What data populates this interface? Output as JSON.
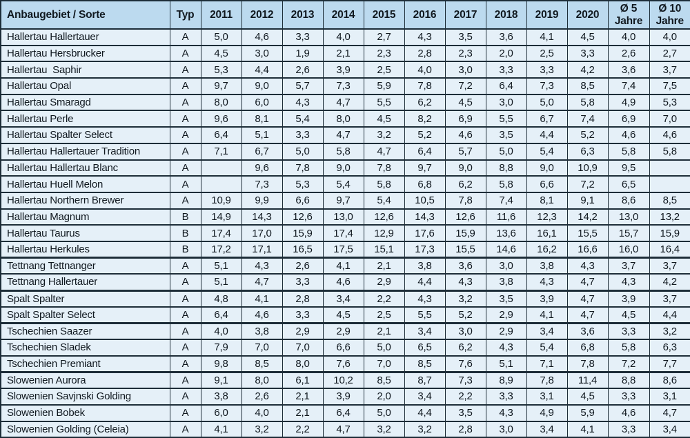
{
  "colors": {
    "header_bg": "#bcdaef",
    "row_bg": "#e5f0f8",
    "border": "#1d2d38",
    "text": "#10181f"
  },
  "table": {
    "columns": [
      {
        "key": "name",
        "label": "Anbaugebiet / Sorte"
      },
      {
        "key": "typ",
        "label": "Typ"
      },
      {
        "key": "y2011",
        "label": "2011"
      },
      {
        "key": "y2012",
        "label": "2012"
      },
      {
        "key": "y2013",
        "label": "2013"
      },
      {
        "key": "y2014",
        "label": "2014"
      },
      {
        "key": "y2015",
        "label": "2015"
      },
      {
        "key": "y2016",
        "label": "2016"
      },
      {
        "key": "y2017",
        "label": "2017"
      },
      {
        "key": "y2018",
        "label": "2018"
      },
      {
        "key": "y2019",
        "label": "2019"
      },
      {
        "key": "y2020",
        "label": "2020"
      },
      {
        "key": "avg5",
        "label": "Ø 5\nJahre"
      },
      {
        "key": "avg10",
        "label": "Ø 10\nJahre"
      }
    ],
    "rows": [
      {
        "name": "Hallertau Hallertauer",
        "typ": "A",
        "values": [
          "5,0",
          "4,6",
          "3,3",
          "4,0",
          "2,7",
          "4,3",
          "3,5",
          "3,6",
          "4,1",
          "4,5",
          "4,0",
          "4,0"
        ],
        "section_end": false
      },
      {
        "name": "Hallertau Hersbrucker",
        "typ": "A",
        "values": [
          "4,5",
          "3,0",
          "1,9",
          "2,1",
          "2,3",
          "2,8",
          "2,3",
          "2,0",
          "2,5",
          "3,3",
          "2,6",
          "2,7"
        ],
        "section_end": false
      },
      {
        "name": "Hallertau  Saphir",
        "typ": "A",
        "values": [
          "5,3",
          "4,4",
          "2,6",
          "3,9",
          "2,5",
          "4,0",
          "3,0",
          "3,3",
          "3,3",
          "4,2",
          "3,6",
          "3,7"
        ],
        "section_end": false
      },
      {
        "name": "Hallertau Opal",
        "typ": "A",
        "values": [
          "9,7",
          "9,0",
          "5,7",
          "7,3",
          "5,9",
          "7,8",
          "7,2",
          "6,4",
          "7,3",
          "8,5",
          "7,4",
          "7,5"
        ],
        "section_end": false
      },
      {
        "name": "Hallertau Smaragd",
        "typ": "A",
        "values": [
          "8,0",
          "6,0",
          "4,3",
          "4,7",
          "5,5",
          "6,2",
          "4,5",
          "3,0",
          "5,0",
          "5,8",
          "4,9",
          "5,3"
        ],
        "section_end": false
      },
      {
        "name": "Hallertau Perle",
        "typ": "A",
        "values": [
          "9,6",
          "8,1",
          "5,4",
          "8,0",
          "4,5",
          "8,2",
          "6,9",
          "5,5",
          "6,7",
          "7,4",
          "6,9",
          "7,0"
        ],
        "section_end": false
      },
      {
        "name": "Hallertau Spalter Select",
        "typ": "A",
        "values": [
          "6,4",
          "5,1",
          "3,3",
          "4,7",
          "3,2",
          "5,2",
          "4,6",
          "3,5",
          "4,4",
          "5,2",
          "4,6",
          "4,6"
        ],
        "section_end": false
      },
      {
        "name": "Hallertau Hallertauer Tradition",
        "typ": "A",
        "values": [
          "7,1",
          "6,7",
          "5,0",
          "5,8",
          "4,7",
          "6,4",
          "5,7",
          "5,0",
          "5,4",
          "6,3",
          "5,8",
          "5,8"
        ],
        "section_end": false
      },
      {
        "name": "Hallertau Hallertau Blanc",
        "typ": "A",
        "values": [
          "",
          "9,6",
          "7,8",
          "9,0",
          "7,8",
          "9,7",
          "9,0",
          "8,8",
          "9,0",
          "10,9",
          "9,5",
          ""
        ],
        "section_end": false
      },
      {
        "name": "Hallertau Huell Melon",
        "typ": "A",
        "values": [
          "",
          "7,3",
          "5,3",
          "5,4",
          "5,8",
          "6,8",
          "6,2",
          "5,8",
          "6,6",
          "7,2",
          "6,5",
          ""
        ],
        "section_end": false
      },
      {
        "name": "Hallertau Northern Brewer",
        "typ": "A",
        "values": [
          "10,9",
          "9,9",
          "6,6",
          "9,7",
          "5,4",
          "10,5",
          "7,8",
          "7,4",
          "8,1",
          "9,1",
          "8,6",
          "8,5"
        ],
        "section_end": false
      },
      {
        "name": "Hallertau Magnum",
        "typ": "B",
        "values": [
          "14,9",
          "14,3",
          "12,6",
          "13,0",
          "12,6",
          "14,3",
          "12,6",
          "11,6",
          "12,3",
          "14,2",
          "13,0",
          "13,2"
        ],
        "section_end": false
      },
      {
        "name": "Hallertau Taurus",
        "typ": "B",
        "values": [
          "17,4",
          "17,0",
          "15,9",
          "17,4",
          "12,9",
          "17,6",
          "15,9",
          "13,6",
          "16,1",
          "15,5",
          "15,7",
          "15,9"
        ],
        "section_end": false
      },
      {
        "name": "Hallertau Herkules",
        "typ": "B",
        "values": [
          "17,2",
          "17,1",
          "16,5",
          "17,5",
          "15,1",
          "17,3",
          "15,5",
          "14,6",
          "16,2",
          "16,6",
          "16,0",
          "16,4"
        ],
        "section_end": true
      },
      {
        "name": "Tettnang Tettnanger",
        "typ": "A",
        "values": [
          "5,1",
          "4,3",
          "2,6",
          "4,1",
          "2,1",
          "3,8",
          "3,6",
          "3,0",
          "3,8",
          "4,3",
          "3,7",
          "3,7"
        ],
        "section_end": false
      },
      {
        "name": "Tettnang Hallertauer",
        "typ": "A",
        "values": [
          "5,1",
          "4,7",
          "3,3",
          "4,6",
          "2,9",
          "4,4",
          "4,3",
          "3,8",
          "4,3",
          "4,7",
          "4,3",
          "4,2"
        ],
        "section_end": true
      },
      {
        "name": "Spalt Spalter",
        "typ": "A",
        "values": [
          "4,8",
          "4,1",
          "2,8",
          "3,4",
          "2,2",
          "4,3",
          "3,2",
          "3,5",
          "3,9",
          "4,7",
          "3,9",
          "3,7"
        ],
        "section_end": false
      },
      {
        "name": "Spalt Spalter Select",
        "typ": "A",
        "values": [
          "6,4",
          "4,6",
          "3,3",
          "4,5",
          "2,5",
          "5,5",
          "5,2",
          "2,9",
          "4,1",
          "4,7",
          "4,5",
          "4,4"
        ],
        "section_end": true
      },
      {
        "name": "Tschechien Saazer",
        "typ": "A",
        "values": [
          "4,0",
          "3,8",
          "2,9",
          "2,9",
          "2,1",
          "3,4",
          "3,0",
          "2,9",
          "3,4",
          "3,6",
          "3,3",
          "3,2"
        ],
        "section_end": false
      },
      {
        "name": "Tschechien Sladek",
        "typ": "A",
        "values": [
          "7,9",
          "7,0",
          "7,0",
          "6,6",
          "5,0",
          "6,5",
          "6,2",
          "4,3",
          "5,4",
          "6,8",
          "5,8",
          "6,3"
        ],
        "section_end": false
      },
      {
        "name": "Tschechien Premiant",
        "typ": "A",
        "values": [
          "9,8",
          "8,5",
          "8,0",
          "7,6",
          "7,0",
          "8,5",
          "7,6",
          "5,1",
          "7,1",
          "7,8",
          "7,2",
          "7,7"
        ],
        "section_end": true
      },
      {
        "name": "Slowenien Aurora",
        "typ": "A",
        "values": [
          "9,1",
          "8,0",
          "6,1",
          "10,2",
          "8,5",
          "8,7",
          "7,3",
          "8,9",
          "7,8",
          "11,4",
          "8,8",
          "8,6"
        ],
        "section_end": false
      },
      {
        "name": "Slowenien Savjnski Golding",
        "typ": "A",
        "values": [
          "3,8",
          "2,6",
          "2,1",
          "3,9",
          "2,0",
          "3,4",
          "2,2",
          "3,3",
          "3,1",
          "4,5",
          "3,3",
          "3,1"
        ],
        "section_end": false
      },
      {
        "name": "Slowenien Bobek",
        "typ": "A",
        "values": [
          "6,0",
          "4,0",
          "2,1",
          "6,4",
          "5,0",
          "4,4",
          "3,5",
          "4,3",
          "4,9",
          "5,9",
          "4,6",
          "4,7"
        ],
        "section_end": false
      },
      {
        "name": "Slowenien Golding (Celeia)",
        "typ": "A",
        "values": [
          "4,1",
          "3,2",
          "2,2",
          "4,7",
          "3,2",
          "3,2",
          "2,8",
          "3,0",
          "3,4",
          "4,1",
          "3,3",
          "3,4"
        ],
        "section_end": false
      }
    ]
  }
}
